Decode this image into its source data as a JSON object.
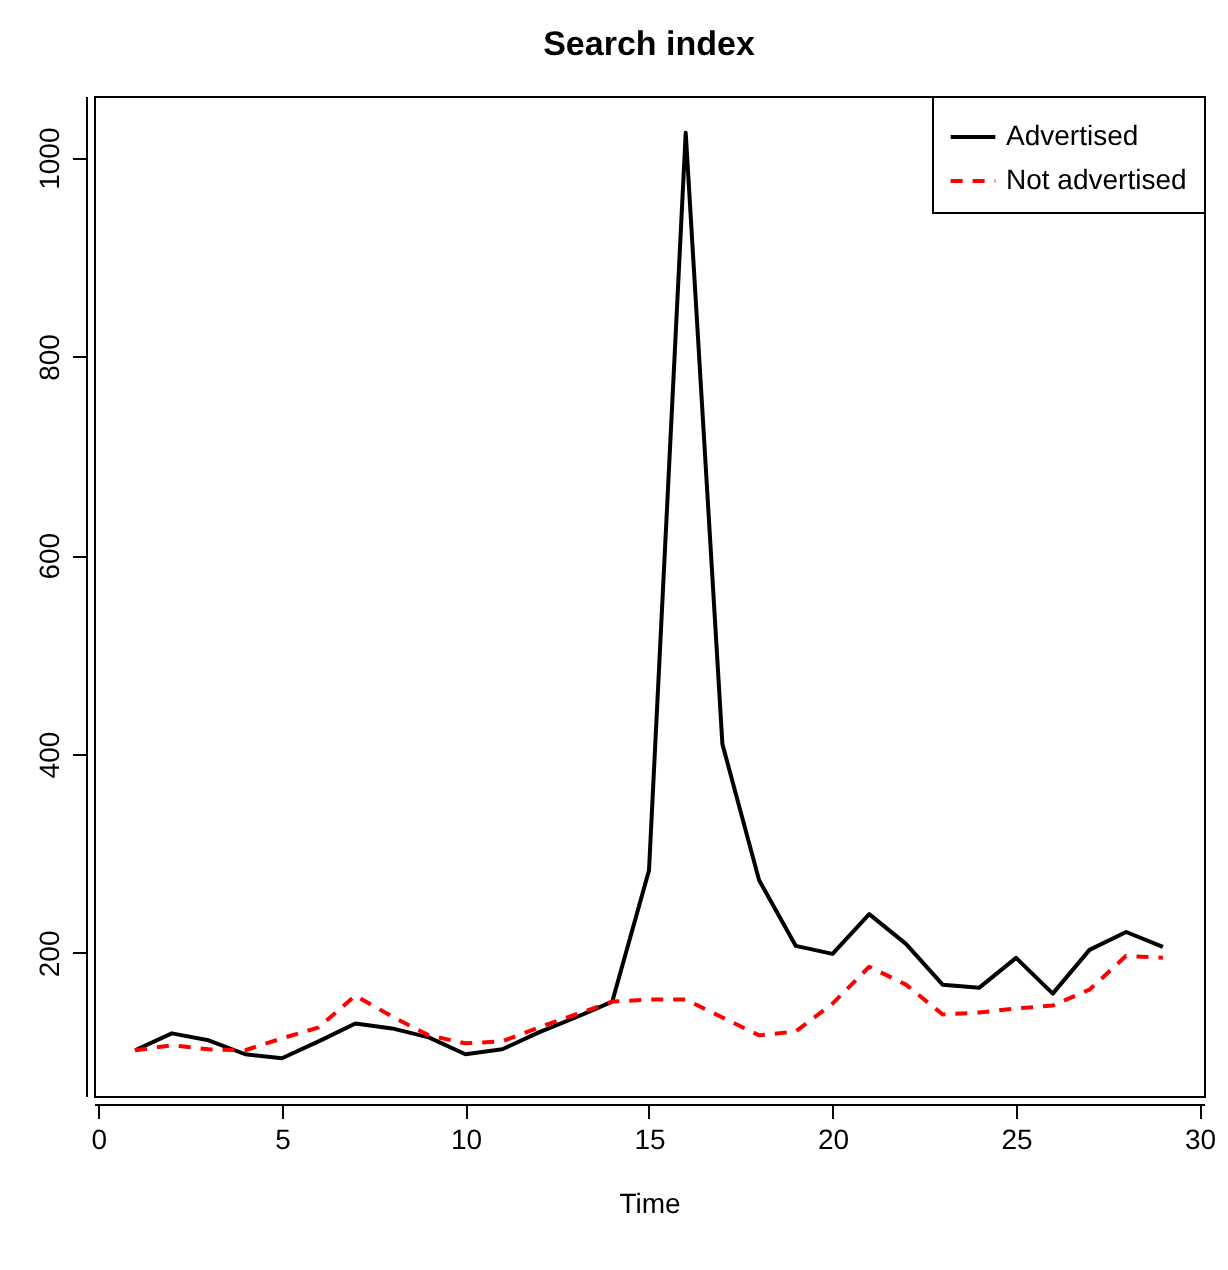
{
  "chart_data": {
    "type": "line",
    "title": "Search index",
    "xlabel": "Time",
    "x": [
      1,
      2,
      3,
      4,
      5,
      6,
      7,
      8,
      9,
      10,
      11,
      12,
      13,
      14,
      15,
      16,
      17,
      18,
      19,
      20,
      21,
      22,
      23,
      24,
      25,
      26,
      27,
      28,
      29
    ],
    "series": [
      {
        "name": "Advertised",
        "color": "#000000",
        "line_style": "solid",
        "values": [
          102,
          119,
          112,
          98,
          94,
          111,
          129,
          124,
          115,
          98,
          103,
          120,
          135,
          151,
          283,
          1025,
          410,
          273,
          207,
          199,
          239,
          209,
          168,
          165,
          195,
          159,
          203,
          221,
          206
        ]
      },
      {
        "name": "Not advertised",
        "color": "#ff0000",
        "line_style": "dashed",
        "values": [
          102,
          107,
          103,
          102,
          114,
          125,
          157,
          136,
          117,
          109,
          111,
          125,
          138,
          151,
          153,
          153,
          135,
          117,
          121,
          149,
          186,
          168,
          138,
          140,
          144,
          147,
          163,
          197,
          195
        ]
      }
    ],
    "xlim": [
      -0.12,
      30.12
    ],
    "ylim": [
      56,
      1062
    ],
    "xticks": [
      0,
      5,
      10,
      15,
      20,
      25,
      30
    ],
    "yticks": [
      200,
      400,
      600,
      800,
      1000
    ],
    "grid": false,
    "legend": "top right",
    "marker": "none"
  }
}
